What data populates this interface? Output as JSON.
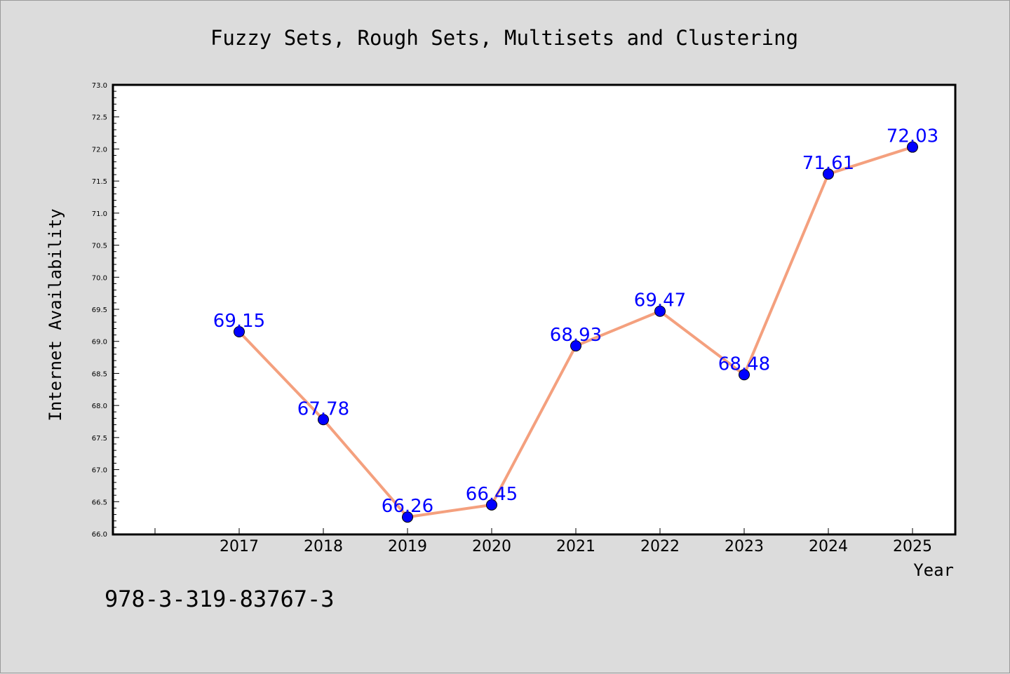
{
  "chart_data": {
    "type": "line",
    "title": "Fuzzy Sets, Rough Sets, Multisets and Clustering",
    "xlabel": "Year",
    "ylabel": "Internet Availability",
    "categories": [
      "2017",
      "2018",
      "2019",
      "2020",
      "2021",
      "2022",
      "2023",
      "2024",
      "2025"
    ],
    "series": [
      {
        "values": [
          69.15,
          67.78,
          66.26,
          66.45,
          68.93,
          69.47,
          68.48,
          71.61,
          72.03
        ],
        "labels": [
          "69.15",
          "67.78",
          "66.26",
          "66.45",
          "68.93",
          "69.47",
          "68.48",
          "71.61",
          "72.03"
        ]
      }
    ],
    "ylim": [
      66.0,
      73.0
    ],
    "yticks": [
      "66.0",
      "66.5",
      "67.0",
      "67.5",
      "68.0",
      "68.5",
      "69.0",
      "69.5",
      "70.0",
      "70.5",
      "71.0",
      "71.5",
      "72.0",
      "72.5",
      "73.0"
    ],
    "grid": false,
    "legend": "none",
    "colors": {
      "line": "#f4a07e",
      "marker": "#0000ff",
      "data_label": "#0000ff",
      "plot_bg": "#ffffff",
      "page_bg": "#dcdcdc"
    }
  },
  "footnote": "978-3-319-83767-3"
}
